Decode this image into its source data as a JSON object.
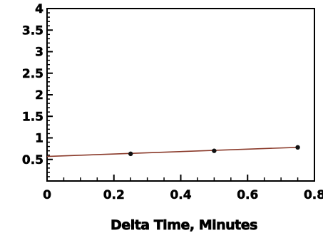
{
  "chart_data": {
    "type": "line",
    "title": "",
    "xlabel": "Delta Time, Minutes",
    "ylabel": "",
    "xlim": [
      0,
      0.8
    ],
    "ylim": [
      0,
      4
    ],
    "x_ticks": [
      "0",
      "0.2",
      "0.4",
      "0.6",
      "0.8"
    ],
    "y_ticks": [
      "0.5",
      "1",
      "1.5",
      "2",
      "2.5",
      "3",
      "3.5",
      "4"
    ],
    "grid": false,
    "legend": "none",
    "series": [
      {
        "points": [
          {
            "x": 0.25,
            "y": 0.63
          },
          {
            "x": 0.5,
            "y": 0.7
          },
          {
            "x": 0.75,
            "y": 0.78
          }
        ],
        "fit_line": {
          "x_start": 0,
          "y_start": 0.57,
          "x_end": 0.75,
          "y_end": 0.78
        }
      }
    ],
    "colors": {
      "fit_line": "#8a3a2a",
      "points": "#111111",
      "axis": "#000000"
    }
  }
}
